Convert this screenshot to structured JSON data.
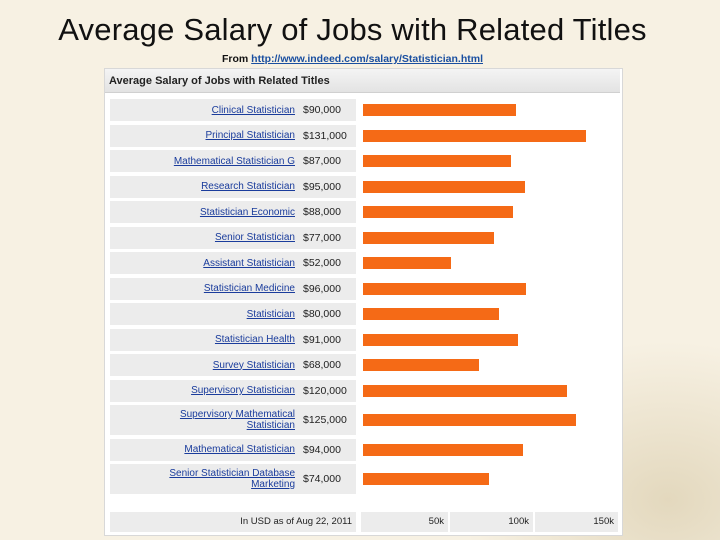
{
  "slide": {
    "title": "Average Salary of Jobs with Related Titles",
    "source_prefix": "From ",
    "source_link": "http://www.indeed.com/salary/Statistician.html"
  },
  "chart_data": {
    "type": "bar",
    "orientation": "horizontal",
    "title": "Average Salary of Jobs with Related Titles",
    "categories": [
      "Clinical Statistician",
      "Principal Statistician",
      "Mathematical Statistician G",
      "Research Statistician",
      "Statistician Economic",
      "Senior Statistician",
      "Assistant Statistician",
      "Statistician Medicine",
      "Statistician",
      "Statistician Health",
      "Survey Statistician",
      "Supervisory Statistician",
      "Supervisory Mathematical Statistician",
      "Mathematical Statistician",
      "Senior Statistician Database Marketing"
    ],
    "category_lines": [
      [
        "Clinical Statistician"
      ],
      [
        "Principal Statistician"
      ],
      [
        "Mathematical Statistician G"
      ],
      [
        "Research Statistician"
      ],
      [
        "Statistician Economic"
      ],
      [
        "Senior Statistician"
      ],
      [
        "Assistant Statistician"
      ],
      [
        "Statistician Medicine"
      ],
      [
        "Statistician"
      ],
      [
        "Statistician Health"
      ],
      [
        "Survey Statistician"
      ],
      [
        "Supervisory Statistician"
      ],
      [
        "Supervisory Mathematical",
        "Statistician"
      ],
      [
        "Mathematical Statistician"
      ],
      [
        "Senior Statistician Database",
        "Marketing"
      ]
    ],
    "values": [
      90000,
      131000,
      87000,
      95000,
      88000,
      77000,
      52000,
      96000,
      80000,
      91000,
      68000,
      120000,
      125000,
      94000,
      74000
    ],
    "value_labels": [
      "$90,000",
      "$131,000",
      "$87,000",
      "$95,000",
      "$88,000",
      "$77,000",
      "$52,000",
      "$96,000",
      "$80,000",
      "$91,000",
      "$68,000",
      "$120,000",
      "$125,000",
      "$94,000",
      "$74,000"
    ],
    "xlim": [
      0,
      150000
    ],
    "tick_labels": [
      "50k",
      "100k",
      "150k"
    ],
    "tick_values": [
      50000,
      100000,
      150000
    ],
    "footer_note": "In USD as of Aug 22, 2011",
    "bar_color": "#f56a16",
    "label_color": "#1a3c9c"
  }
}
